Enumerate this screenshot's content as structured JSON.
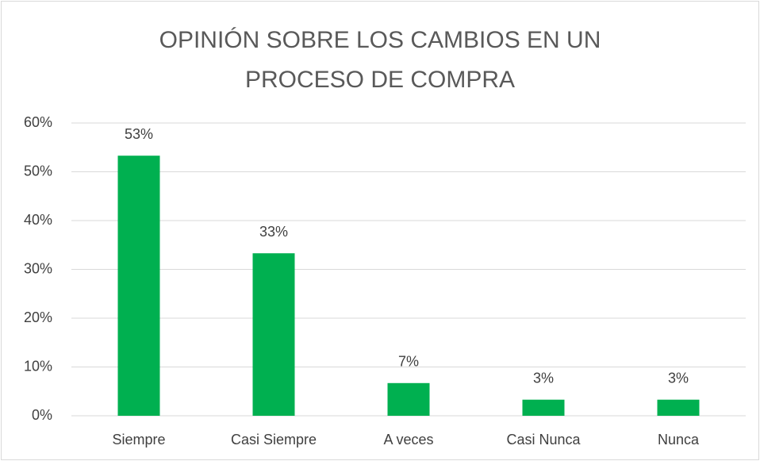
{
  "chart_data": {
    "type": "bar",
    "title": "OPINIÓN SOBRE LOS CAMBIOS EN UN PROCESO DE COMPRA",
    "categories": [
      "Siempre",
      "Casi Siempre",
      "A veces",
      "Casi Nunca",
      "Nunca"
    ],
    "values": [
      53.3,
      33.3,
      6.7,
      3.3,
      3.3
    ],
    "value_labels": [
      "53%",
      "33%",
      "7%",
      "3%",
      "3%"
    ],
    "color": "#00b050",
    "ylim": [
      0,
      60
    ],
    "yticks": [
      {
        "value": 0,
        "label": "0%"
      },
      {
        "value": 10,
        "label": "10%"
      },
      {
        "value": 20,
        "label": "20%"
      },
      {
        "value": 30,
        "label": "30%"
      },
      {
        "value": 40,
        "label": "40%"
      },
      {
        "value": 50,
        "label": "50%"
      },
      {
        "value": 60,
        "label": "60%"
      }
    ],
    "grid": true
  }
}
